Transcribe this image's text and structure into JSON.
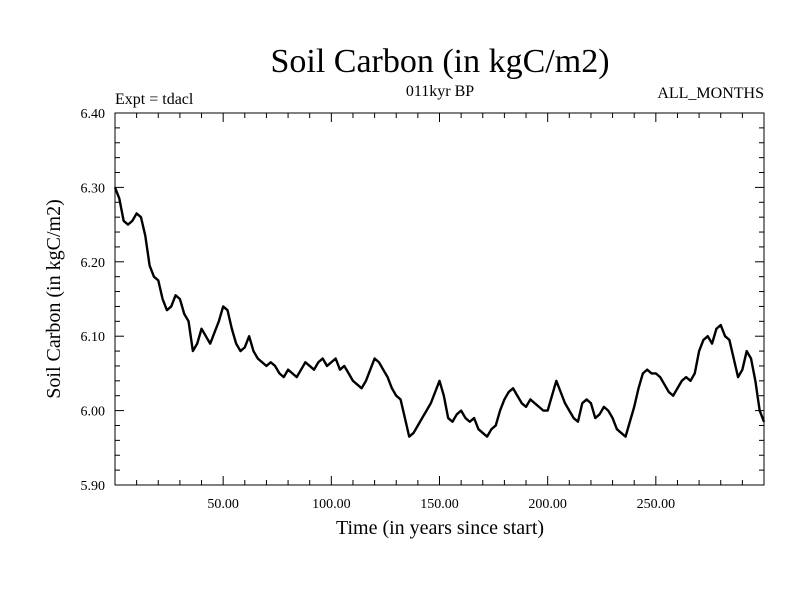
{
  "chart_data": {
    "type": "line",
    "title": "Soil Carbon (in kgC/m2)",
    "subtitle": "011kyr BP",
    "left_label": "Expt = tdacl",
    "right_label": "ALL_MONTHS",
    "xlabel": "Time (in years since start)",
    "ylabel": "Soil Carbon (in kgC/m2)",
    "xlim": [
      0,
      300
    ],
    "ylim": [
      5.9,
      6.4
    ],
    "xticks": [
      50,
      100,
      150,
      200,
      250
    ],
    "xtick_labels": [
      "50.00",
      "100.00",
      "150.00",
      "200.00",
      "250.00"
    ],
    "yticks": [
      5.9,
      6.0,
      6.1,
      6.2,
      6.3,
      6.4
    ],
    "ytick_labels": [
      "5.90",
      "6.00",
      "6.10",
      "6.20",
      "6.30",
      "6.40"
    ],
    "series": [
      {
        "name": "Soil Carbon",
        "x": [
          0,
          2,
          4,
          6,
          8,
          10,
          12,
          14,
          16,
          18,
          20,
          22,
          24,
          26,
          28,
          30,
          32,
          34,
          36,
          38,
          40,
          42,
          44,
          46,
          48,
          50,
          52,
          54,
          56,
          58,
          60,
          62,
          64,
          66,
          68,
          70,
          72,
          74,
          76,
          78,
          80,
          82,
          84,
          86,
          88,
          90,
          92,
          94,
          96,
          98,
          100,
          102,
          104,
          106,
          108,
          110,
          112,
          114,
          116,
          118,
          120,
          122,
          124,
          126,
          128,
          130,
          132,
          134,
          136,
          138,
          140,
          142,
          144,
          146,
          148,
          150,
          152,
          154,
          156,
          158,
          160,
          162,
          164,
          166,
          168,
          170,
          172,
          174,
          176,
          178,
          180,
          182,
          184,
          186,
          188,
          190,
          192,
          194,
          196,
          198,
          200,
          202,
          204,
          206,
          208,
          210,
          212,
          214,
          216,
          218,
          220,
          222,
          224,
          226,
          228,
          230,
          232,
          234,
          236,
          238,
          240,
          242,
          244,
          246,
          248,
          250,
          252,
          254,
          256,
          258,
          260,
          262,
          264,
          266,
          268,
          270,
          272,
          274,
          276,
          278,
          280,
          282,
          284,
          286,
          288,
          290,
          292,
          294,
          296,
          298,
          300
        ],
        "values": [
          6.3,
          6.285,
          6.255,
          6.25,
          6.255,
          6.265,
          6.26,
          6.235,
          6.195,
          6.18,
          6.175,
          6.15,
          6.135,
          6.14,
          6.155,
          6.15,
          6.13,
          6.12,
          6.08,
          6.09,
          6.11,
          6.1,
          6.09,
          6.105,
          6.12,
          6.14,
          6.135,
          6.11,
          6.09,
          6.08,
          6.085,
          6.1,
          6.08,
          6.07,
          6.065,
          6.06,
          6.065,
          6.06,
          6.05,
          6.045,
          6.055,
          6.05,
          6.045,
          6.055,
          6.065,
          6.06,
          6.055,
          6.065,
          6.07,
          6.06,
          6.065,
          6.07,
          6.055,
          6.06,
          6.05,
          6.04,
          6.035,
          6.03,
          6.04,
          6.055,
          6.07,
          6.065,
          6.055,
          6.045,
          6.03,
          6.02,
          6.015,
          5.99,
          5.965,
          5.97,
          5.98,
          5.99,
          6.0,
          6.01,
          6.025,
          6.04,
          6.02,
          5.99,
          5.985,
          5.995,
          6.0,
          5.99,
          5.985,
          5.99,
          5.975,
          5.97,
          5.965,
          5.975,
          5.98,
          6.0,
          6.015,
          6.025,
          6.03,
          6.02,
          6.01,
          6.005,
          6.015,
          6.01,
          6.005,
          6.0,
          6.0,
          6.02,
          6.04,
          6.025,
          6.01,
          6.0,
          5.99,
          5.985,
          6.01,
          6.015,
          6.01,
          5.99,
          5.995,
          6.005,
          6.0,
          5.99,
          5.975,
          5.97,
          5.965,
          5.985,
          6.005,
          6.03,
          6.05,
          6.055,
          6.05,
          6.05,
          6.045,
          6.035,
          6.025,
          6.02,
          6.03,
          6.04,
          6.045,
          6.04,
          6.05,
          6.08,
          6.095,
          6.1,
          6.09,
          6.11,
          6.115,
          6.1,
          6.095,
          6.07,
          6.045,
          6.055,
          6.08,
          6.07,
          6.04,
          6.0,
          5.985
        ]
      }
    ]
  }
}
